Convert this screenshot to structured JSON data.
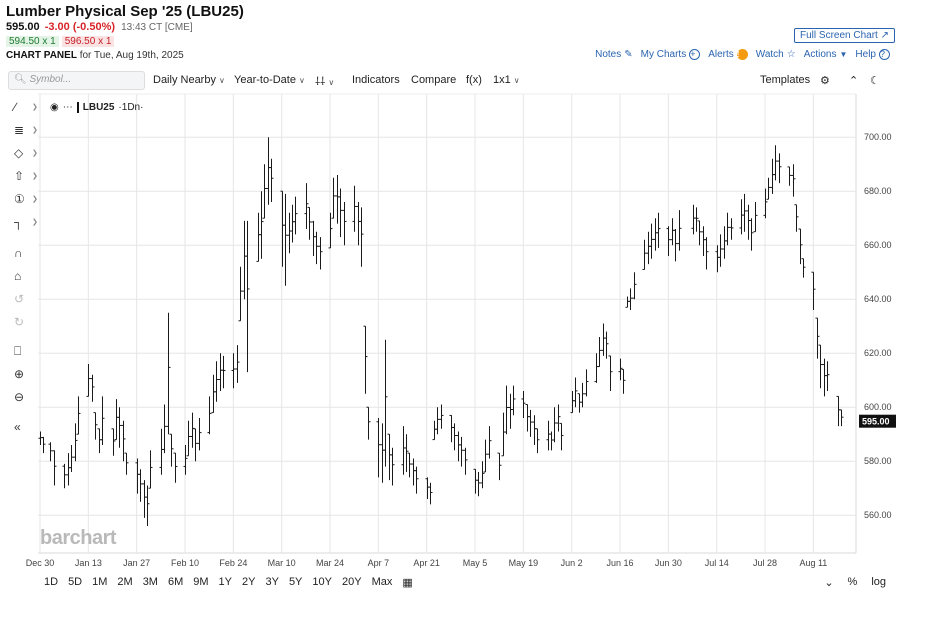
{
  "header": {
    "title": "Lumber Physical Sep '25 (LBU25)",
    "price": "595.00",
    "change": "-3.00 (-0.50%)",
    "time": "13:43 CT [CME]",
    "bid": "594.50 x 1",
    "ask": "596.50 x 1",
    "panel_label": "CHART PANEL",
    "panel_date": "for Tue, Aug 19th, 2025",
    "fullscreen_label": "Full Screen Chart"
  },
  "toplinks": {
    "notes": "Notes",
    "mycharts": "My Charts",
    "alerts": "Alerts",
    "watch": "Watch",
    "actions": "Actions",
    "help": "Help"
  },
  "toolbar": {
    "search_placeholder": "Symbol...",
    "aggregation": "Daily Nearby",
    "period": "Year-to-Date",
    "indicators": "Indicators",
    "compare": "Compare",
    "fx": "f(x)",
    "layout": "1x1",
    "templates": "Templates"
  },
  "legend": {
    "symbol": "LBU25",
    "interval": "·1Dn·"
  },
  "watermark": "barchart",
  "range_buttons": [
    "1D",
    "5D",
    "1M",
    "2M",
    "3M",
    "6M",
    "9M",
    "1Y",
    "2Y",
    "3Y",
    "5Y",
    "10Y",
    "20Y",
    "Max"
  ],
  "right_controls": {
    "pct": "%",
    "log": "log"
  },
  "chart_data": {
    "type": "ohlc",
    "x_tick_labels": [
      "Dec 30",
      "Jan 13",
      "Jan 27",
      "Feb 10",
      "Feb 24",
      "Mar 10",
      "Mar 24",
      "Apr 7",
      "Apr 21",
      "May 5",
      "May 19",
      "Jun 2",
      "Jun 16",
      "Jun 30",
      "Jul 14",
      "Jul 28",
      "Aug 11"
    ],
    "y_ticks": [
      560,
      580,
      600,
      620,
      640,
      660,
      680,
      700
    ],
    "y_tick_labels": [
      "560.00",
      "580.00",
      "600.00",
      "620.00",
      "640.00",
      "660.00",
      "680.00",
      "700.00"
    ],
    "ylim": [
      546,
      716
    ],
    "last_price": 595.0,
    "last_label": "595.00",
    "bars": [
      [
        "2024-12-30",
        591,
        586
      ],
      [
        "2024-12-31",
        589,
        583
      ],
      [
        "2025-01-02",
        587,
        580
      ],
      [
        "2025-01-03",
        584,
        571
      ],
      [
        "2025-01-06",
        579,
        570
      ],
      [
        "2025-01-07",
        583,
        571
      ],
      [
        "2025-01-08",
        586,
        576
      ],
      [
        "2025-01-09",
        594,
        580
      ],
      [
        "2025-01-10",
        604,
        590
      ],
      [
        "2025-01-13",
        616,
        604
      ],
      [
        "2025-01-14",
        612,
        602
      ],
      [
        "2025-01-15",
        598,
        588
      ],
      [
        "2025-01-16",
        592,
        583
      ],
      [
        "2025-01-17",
        604,
        586
      ],
      [
        "2025-01-20",
        592,
        582
      ],
      [
        "2025-01-21",
        603,
        588
      ],
      [
        "2025-01-22",
        600,
        585
      ],
      [
        "2025-01-23",
        595,
        580
      ],
      [
        "2025-01-24",
        583,
        575
      ],
      [
        "2025-01-27",
        581,
        568
      ],
      [
        "2025-01-28",
        577,
        565
      ],
      [
        "2025-01-29",
        573,
        559
      ],
      [
        "2025-01-30",
        571,
        556
      ],
      [
        "2025-01-31",
        584,
        570
      ],
      [
        "2025-02-03",
        592,
        575
      ],
      [
        "2025-02-04",
        601,
        583
      ],
      [
        "2025-02-05",
        635,
        590
      ],
      [
        "2025-02-06",
        590,
        578
      ],
      [
        "2025-02-07",
        583,
        572
      ],
      [
        "2025-02-10",
        586,
        575
      ],
      [
        "2025-02-11",
        595,
        582
      ],
      [
        "2025-02-12",
        598,
        585
      ],
      [
        "2025-02-13",
        592,
        580
      ],
      [
        "2025-02-14",
        596,
        584
      ],
      [
        "2025-02-17",
        604,
        590
      ],
      [
        "2025-02-18",
        612,
        598
      ],
      [
        "2025-02-19",
        617,
        602
      ],
      [
        "2025-02-20",
        620,
        606
      ],
      [
        "2025-02-21",
        619,
        607
      ],
      [
        "2025-02-24",
        620,
        607
      ],
      [
        "2025-02-25",
        623,
        609
      ],
      [
        "2025-02-26",
        652,
        632
      ],
      [
        "2025-02-27",
        669,
        640
      ],
      [
        "2025-02-28",
        669,
        613
      ],
      [
        "2025-03-03",
        672,
        654
      ],
      [
        "2025-03-04",
        680,
        655
      ],
      [
        "2025-03-05",
        690,
        670
      ],
      [
        "2025-03-06",
        700,
        675
      ],
      [
        "2025-03-07",
        692,
        676
      ],
      [
        "2025-03-10",
        680,
        652
      ],
      [
        "2025-03-11",
        679,
        645
      ],
      [
        "2025-03-12",
        672,
        657
      ],
      [
        "2025-03-13",
        675,
        661
      ],
      [
        "2025-03-14",
        678,
        664
      ],
      [
        "2025-03-17",
        683,
        666
      ],
      [
        "2025-03-18",
        674,
        662
      ],
      [
        "2025-03-19",
        669,
        656
      ],
      [
        "2025-03-20",
        665,
        653
      ],
      [
        "2025-03-21",
        663,
        651
      ],
      [
        "2025-03-24",
        672,
        659
      ],
      [
        "2025-03-25",
        685,
        670
      ],
      [
        "2025-03-26",
        686,
        668
      ],
      [
        "2025-03-27",
        681,
        663
      ],
      [
        "2025-03-28",
        676,
        660
      ],
      [
        "2025-03-31",
        682,
        665
      ],
      [
        "2025-04-01",
        676,
        660
      ],
      [
        "2025-04-02",
        674,
        652
      ],
      [
        "2025-04-03",
        630,
        605
      ],
      [
        "2025-04-04",
        600,
        588
      ],
      [
        "2025-04-07",
        596,
        574
      ],
      [
        "2025-04-08",
        594,
        572
      ],
      [
        "2025-04-09",
        625,
        578
      ],
      [
        "2025-04-10",
        590,
        573
      ],
      [
        "2025-04-11",
        585,
        571
      ],
      [
        "2025-04-14",
        593,
        575
      ],
      [
        "2025-04-15",
        590,
        576
      ],
      [
        "2025-04-16",
        583,
        574
      ],
      [
        "2025-04-17",
        581,
        571
      ],
      [
        "2025-04-18",
        578,
        568
      ],
      [
        "2025-04-21",
        574,
        566
      ],
      [
        "2025-04-22",
        572,
        564
      ],
      [
        "2025-04-23",
        595,
        588
      ],
      [
        "2025-04-24",
        600,
        590
      ],
      [
        "2025-04-25",
        601,
        592
      ],
      [
        "2025-04-28",
        597,
        587
      ],
      [
        "2025-04-29",
        594,
        584
      ],
      [
        "2025-04-30",
        591,
        580
      ],
      [
        "2025-05-01",
        589,
        578
      ],
      [
        "2025-05-02",
        585,
        575
      ],
      [
        "2025-05-05",
        577,
        568
      ],
      [
        "2025-05-06",
        576,
        567
      ],
      [
        "2025-05-07",
        580,
        570
      ],
      [
        "2025-05-08",
        588,
        576
      ],
      [
        "2025-05-09",
        593,
        581
      ],
      [
        "2025-05-12",
        583,
        573
      ],
      [
        "2025-05-13",
        598,
        582
      ],
      [
        "2025-05-14",
        608,
        590
      ],
      [
        "2025-05-15",
        605,
        592
      ],
      [
        "2025-05-16",
        608,
        597
      ],
      [
        "2025-05-19",
        606,
        596
      ],
      [
        "2025-05-20",
        601,
        591
      ],
      [
        "2025-05-21",
        599,
        589
      ],
      [
        "2025-05-22",
        597,
        586
      ],
      [
        "2025-05-23",
        592,
        583
      ],
      [
        "2025-05-26",
        595,
        584
      ],
      [
        "2025-05-27",
        591,
        584
      ],
      [
        "2025-05-28",
        600,
        587
      ],
      [
        "2025-05-29",
        601,
        591
      ],
      [
        "2025-05-30",
        594,
        584
      ],
      [
        "2025-06-02",
        606,
        598
      ],
      [
        "2025-06-03",
        611,
        600
      ],
      [
        "2025-06-04",
        605,
        598
      ],
      [
        "2025-06-05",
        609,
        600
      ],
      [
        "2025-06-06",
        614,
        604
      ],
      [
        "2025-06-09",
        620,
        609
      ],
      [
        "2025-06-10",
        626,
        615
      ],
      [
        "2025-06-11",
        631,
        619
      ],
      [
        "2025-06-12",
        628,
        618
      ],
      [
        "2025-06-13",
        619,
        606
      ],
      [
        "2025-06-16",
        618,
        610
      ],
      [
        "2025-06-17",
        614,
        605
      ],
      [
        "2025-06-18",
        641,
        637
      ],
      [
        "2025-06-19",
        644,
        636
      ],
      [
        "2025-06-20",
        650,
        640
      ],
      [
        "2025-06-23",
        662,
        651
      ],
      [
        "2025-06-24",
        665,
        653
      ],
      [
        "2025-06-25",
        668,
        655
      ],
      [
        "2025-06-26",
        670,
        658
      ],
      [
        "2025-06-27",
        672,
        659
      ],
      [
        "2025-06-30",
        667,
        656
      ],
      [
        "2025-07-01",
        670,
        660
      ],
      [
        "2025-07-02",
        666,
        654
      ],
      [
        "2025-07-03",
        673,
        658
      ],
      [
        "2025-07-07",
        675,
        664
      ],
      [
        "2025-07-08",
        674,
        665
      ],
      [
        "2025-07-09",
        669,
        660
      ],
      [
        "2025-07-10",
        667,
        656
      ],
      [
        "2025-07-11",
        663,
        651
      ],
      [
        "2025-07-14",
        660,
        650
      ],
      [
        "2025-07-15",
        664,
        652
      ],
      [
        "2025-07-16",
        667,
        655
      ],
      [
        "2025-07-17",
        672,
        660
      ],
      [
        "2025-07-18",
        670,
        662
      ],
      [
        "2025-07-21",
        677,
        664
      ],
      [
        "2025-07-22",
        679,
        665
      ],
      [
        "2025-07-23",
        675,
        662
      ],
      [
        "2025-07-24",
        670,
        658
      ],
      [
        "2025-07-25",
        676,
        665
      ],
      [
        "2025-07-28",
        681,
        670
      ],
      [
        "2025-07-29",
        685,
        677
      ],
      [
        "2025-07-30",
        692,
        679
      ],
      [
        "2025-07-31",
        697,
        684
      ],
      [
        "2025-08-01",
        694,
        683
      ],
      [
        "2025-08-04",
        689,
        682
      ],
      [
        "2025-08-05",
        690,
        678
      ],
      [
        "2025-08-06",
        675,
        665
      ],
      [
        "2025-08-07",
        666,
        653
      ],
      [
        "2025-08-08",
        655,
        648
      ],
      [
        "2025-08-11",
        650,
        636
      ],
      [
        "2025-08-12",
        633,
        618
      ],
      [
        "2025-08-13",
        623,
        607
      ],
      [
        "2025-08-14",
        618,
        604
      ],
      [
        "2025-08-15",
        617,
        606
      ],
      [
        "2025-08-18",
        604,
        593
      ],
      [
        "2025-08-19",
        599,
        593
      ]
    ]
  }
}
